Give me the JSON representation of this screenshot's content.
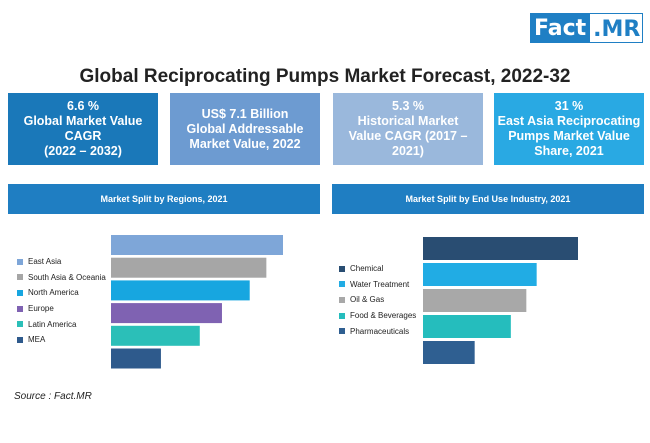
{
  "logo": {
    "part1": "Fact",
    "part2": ".MR"
  },
  "title": "Global Reciprocating Pumps Market Forecast, 2022-32",
  "kpis": [
    {
      "line1": "6.6 %",
      "line2": "Global Market Value",
      "line3": "CAGR",
      "line4": "(2022 – 2032)"
    },
    {
      "line1": "US$ 7.1 Billion",
      "line2": "Global Addressable",
      "line3": "Market Value, 2022",
      "line4": ""
    },
    {
      "line1": "5.3 %",
      "line2": "Historical Market",
      "line3": "Value CAGR (2017 –",
      "line4": "2021)"
    },
    {
      "line1": "31 %",
      "line2": "East Asia Reciprocating",
      "line3": "Pumps Market Value",
      "line4": "Share, 2021"
    }
  ],
  "colors": {
    "kpi1": "#1a78b9",
    "kpi2": "#6d9bd1",
    "kpi3": "#9ab8dc",
    "kpi4": "#29a9e3",
    "panel_header": "#1f7ec2"
  },
  "chart_data": [
    {
      "type": "bar",
      "orientation": "horizontal",
      "title": "Market Split by Regions, 2021",
      "categories": [
        "East Asia",
        "South Asia & Oceania",
        "North America",
        "Europe",
        "Latin America",
        "MEA"
      ],
      "values": [
        31,
        28,
        25,
        20,
        16,
        9
      ],
      "colors": [
        "#7ea6d8",
        "#a6a6a6",
        "#17a6e0",
        "#7f62b2",
        "#2bbfb8",
        "#2e5a8c"
      ],
      "legend_position": "left",
      "grid": false
    },
    {
      "type": "bar",
      "orientation": "horizontal",
      "title": "Market Split by End Use Industry, 2021",
      "categories": [
        "Chemical",
        "Water Treatment",
        "Oil & Gas",
        "Food & Beverages",
        "Pharmaceuticals"
      ],
      "values": [
        30,
        22,
        20,
        17,
        10
      ],
      "colors": [
        "#294d72",
        "#21ace4",
        "#a8a8a8",
        "#25bdbd",
        "#2f5f91"
      ],
      "legend_position": "left",
      "grid": false
    }
  ],
  "source": "Source : Fact.MR"
}
